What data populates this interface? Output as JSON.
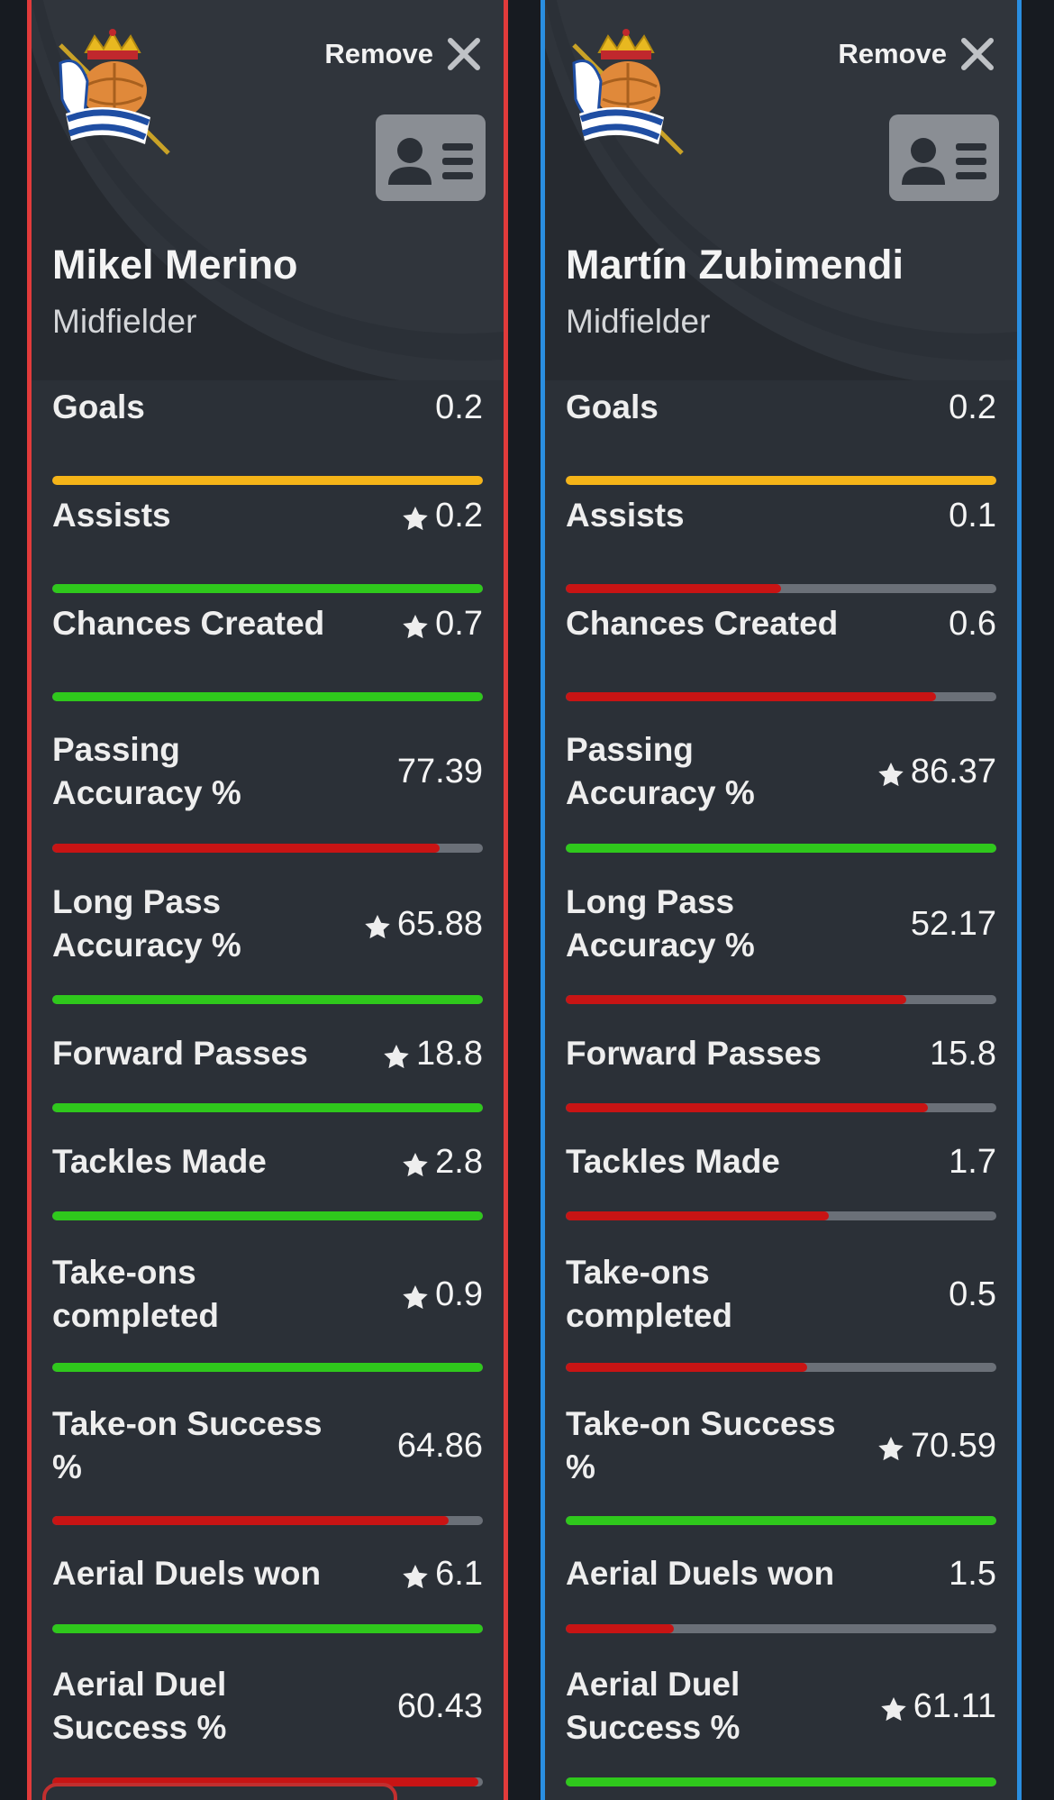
{
  "colors": {
    "left_border": "#e23b3b",
    "right_border": "#2a8ee0",
    "bar_green": "#2fc81c",
    "bar_red": "#c81414",
    "bar_yellow": "#f5b418",
    "bar_track": "#6b7078"
  },
  "players": [
    {
      "name": "Mikel Merino",
      "position": "Midfielder",
      "remove_label": "Remove",
      "stats": [
        {
          "label": "Goals",
          "value": "0.2",
          "star": false,
          "fill": 1.0,
          "color": "#f5b418"
        },
        {
          "label": "Assists",
          "value": "0.2",
          "star": true,
          "fill": 1.0,
          "color": "#2fc81c"
        },
        {
          "label": "Chances Created",
          "value": "0.7",
          "star": true,
          "fill": 1.0,
          "color": "#2fc81c"
        },
        {
          "label": "Passing\nAccuracy %",
          "value": "77.39",
          "star": false,
          "fill": 0.9,
          "color": "#c81414"
        },
        {
          "label": "Long Pass\nAccuracy %",
          "value": "65.88",
          "star": true,
          "fill": 1.0,
          "color": "#2fc81c"
        },
        {
          "label": "Forward Passes",
          "value": "18.8",
          "star": true,
          "fill": 1.0,
          "color": "#2fc81c"
        },
        {
          "label": "Tackles Made",
          "value": "2.8",
          "star": true,
          "fill": 1.0,
          "color": "#2fc81c"
        },
        {
          "label": "Take-ons\ncompleted",
          "value": "0.9",
          "star": true,
          "fill": 1.0,
          "color": "#2fc81c"
        },
        {
          "label": "Take-on Success\n%",
          "value": "64.86",
          "star": false,
          "fill": 0.92,
          "color": "#c81414"
        },
        {
          "label": "Aerial Duels won",
          "value": "6.1",
          "star": true,
          "fill": 1.0,
          "color": "#2fc81c"
        },
        {
          "label": "Aerial Duel\nSuccess %",
          "value": "60.43",
          "star": false,
          "fill": 0.99,
          "color": "#c81414"
        }
      ]
    },
    {
      "name": "Martín Zubimendi",
      "position": "Midfielder",
      "remove_label": "Remove",
      "stats": [
        {
          "label": "Goals",
          "value": "0.2",
          "star": false,
          "fill": 1.0,
          "color": "#f5b418"
        },
        {
          "label": "Assists",
          "value": "0.1",
          "star": false,
          "fill": 0.5,
          "color": "#c81414"
        },
        {
          "label": "Chances Created",
          "value": "0.6",
          "star": false,
          "fill": 0.86,
          "color": "#c81414"
        },
        {
          "label": "Passing\nAccuracy %",
          "value": "86.37",
          "star": true,
          "fill": 1.0,
          "color": "#2fc81c"
        },
        {
          "label": "Long Pass\nAccuracy %",
          "value": "52.17",
          "star": false,
          "fill": 0.79,
          "color": "#c81414"
        },
        {
          "label": "Forward Passes",
          "value": "15.8",
          "star": false,
          "fill": 0.84,
          "color": "#c81414"
        },
        {
          "label": "Tackles Made",
          "value": "1.7",
          "star": false,
          "fill": 0.61,
          "color": "#c81414"
        },
        {
          "label": "Take-ons\ncompleted",
          "value": "0.5",
          "star": false,
          "fill": 0.56,
          "color": "#c81414"
        },
        {
          "label": "Take-on Success\n%",
          "value": "70.59",
          "star": true,
          "fill": 1.0,
          "color": "#2fc81c"
        },
        {
          "label": "Aerial Duels won",
          "value": "1.5",
          "star": false,
          "fill": 0.25,
          "color": "#c81414"
        },
        {
          "label": "Aerial Duel\nSuccess %",
          "value": "61.11",
          "star": true,
          "fill": 1.0,
          "color": "#2fc81c"
        }
      ]
    }
  ]
}
